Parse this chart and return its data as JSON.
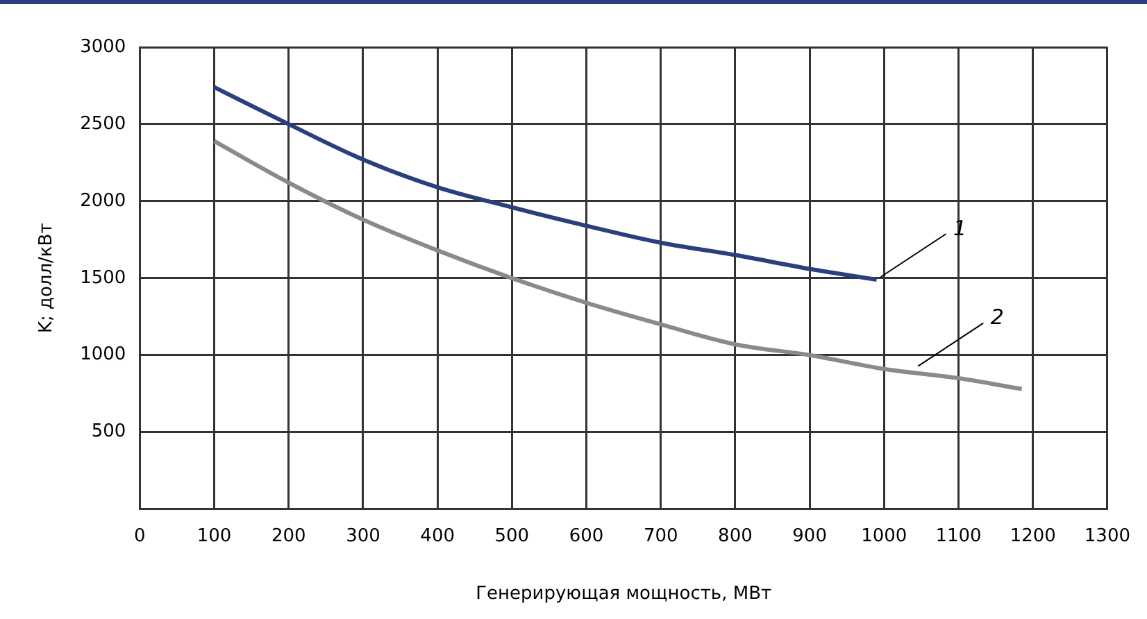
{
  "chart_data": {
    "type": "line",
    "xlabel": "Генерирующая мощность, МВт",
    "ylabel": "K; долл/кВт",
    "xlim": [
      0,
      1300
    ],
    "xticks": [
      0,
      100,
      200,
      300,
      400,
      500,
      600,
      700,
      800,
      900,
      1000,
      1100,
      1200,
      1300
    ],
    "ylim": [
      0,
      3000
    ],
    "yticks": [
      {
        "value": 0,
        "label": null
      },
      500,
      1000,
      1500,
      2000,
      2500,
      3000
    ],
    "grid": true,
    "legend": false,
    "marker": "none",
    "line_style": "solid",
    "series": [
      {
        "color": "#2b3f7e",
        "x": [
          100,
          200,
          300,
          400,
          500,
          600,
          700,
          800,
          900,
          990
        ],
        "values": [
          2740,
          2500,
          2270,
          2090,
          1960,
          1840,
          1730,
          1650,
          1560,
          1490
        ]
      },
      {
        "color": "#8a8a8a",
        "x": [
          100,
          200,
          300,
          400,
          500,
          600,
          700,
          800,
          900,
          1000,
          1100,
          1185
        ],
        "values": [
          2390,
          2120,
          1880,
          1680,
          1500,
          1340,
          1200,
          1070,
          1000,
          910,
          850,
          780
        ]
      }
    ],
    "annotations": [
      {
        "text": "1",
        "x": 990,
        "y": 1490
      },
      {
        "text": "2",
        "x": 1040,
        "y": 910
      }
    ]
  }
}
